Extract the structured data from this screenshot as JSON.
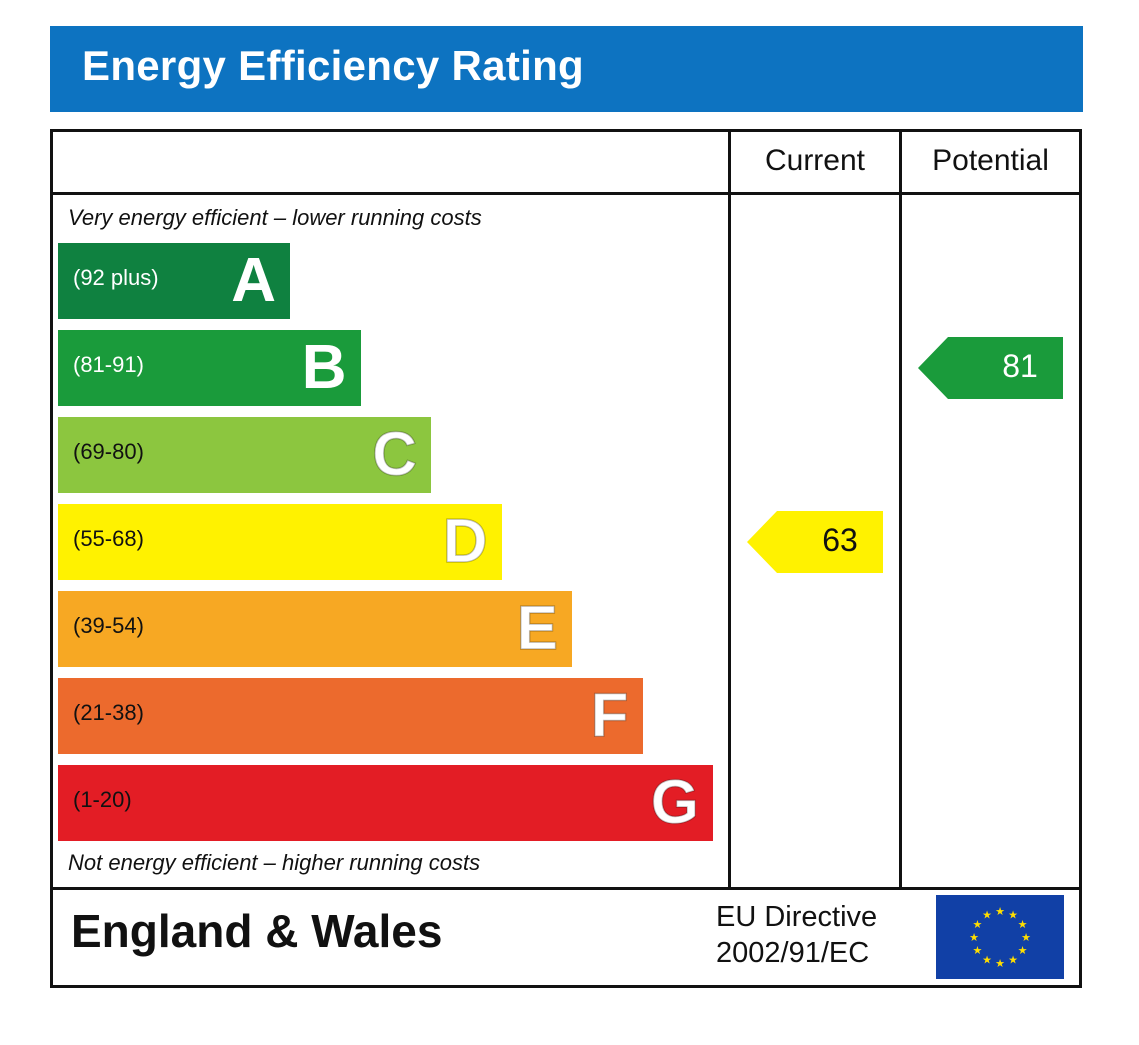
{
  "title": "Energy Efficiency Rating",
  "header": {
    "current": "Current",
    "potential": "Potential"
  },
  "captions": {
    "top": "Very energy efficient – lower running costs",
    "bottom": "Not energy efficient – higher running costs"
  },
  "footer": {
    "country": "England & Wales",
    "directive_line1": "EU Directive",
    "directive_line2": "2002/91/EC",
    "flag_icon": "eu-flag-icon"
  },
  "chart_data": {
    "type": "bar",
    "title": "Energy Efficiency Rating",
    "categories": [
      "A",
      "B",
      "C",
      "D",
      "E",
      "F",
      "G"
    ],
    "bands": [
      {
        "letter": "A",
        "range": "(92 plus)",
        "min": 92,
        "max": 100,
        "color": "#0f8140",
        "text_color": "#ffffff"
      },
      {
        "letter": "B",
        "range": "(81-91)",
        "min": 81,
        "max": 91,
        "color": "#1a9b3b",
        "text_color": "#ffffff"
      },
      {
        "letter": "C",
        "range": "(69-80)",
        "min": 69,
        "max": 80,
        "color": "#8cc63f",
        "text_color": "#111111"
      },
      {
        "letter": "D",
        "range": "(55-68)",
        "min": 55,
        "max": 68,
        "color": "#fff200",
        "text_color": "#111111"
      },
      {
        "letter": "E",
        "range": "(39-54)",
        "min": 39,
        "max": 54,
        "color": "#f7a823",
        "text_color": "#111111"
      },
      {
        "letter": "F",
        "range": "(21-38)",
        "min": 21,
        "max": 38,
        "color": "#ec6a2d",
        "text_color": "#111111"
      },
      {
        "letter": "G",
        "range": "(1-20)",
        "min": 1,
        "max": 20,
        "color": "#e31d25",
        "text_color": "#111111"
      }
    ],
    "current": {
      "value": 63,
      "band": "D",
      "color": "#fff200"
    },
    "potential": {
      "value": 81,
      "band": "B",
      "color": "#1a9b3b"
    }
  }
}
